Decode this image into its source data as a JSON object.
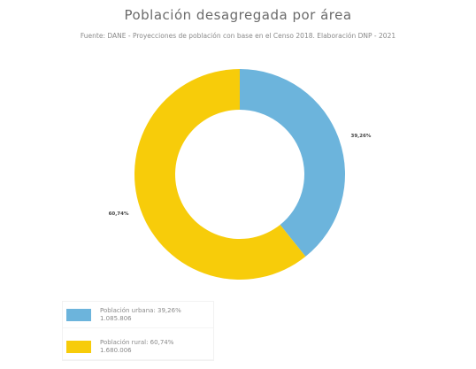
{
  "chart_data": {
    "type": "pie",
    "donut": true,
    "title": "Población desagregada por área",
    "subtitle": "Fuente: DANE - Proyecciones de población con base en el Censo 2018. Elaboración DNP - 2021",
    "series": [
      {
        "name": "Población urbana",
        "value": 39.26,
        "label": "39,26%",
        "legend_line1": "Población urbana: 39,26%",
        "legend_line2": "1.085.806",
        "color": "#6cb4dc"
      },
      {
        "name": "Población rural",
        "value": 60.74,
        "label": "60,74%",
        "legend_line1": "Población rural: 60,74%",
        "legend_line2": "1.680.006",
        "color": "#f7cc0a"
      }
    ],
    "legend_position": "bottom-left"
  }
}
